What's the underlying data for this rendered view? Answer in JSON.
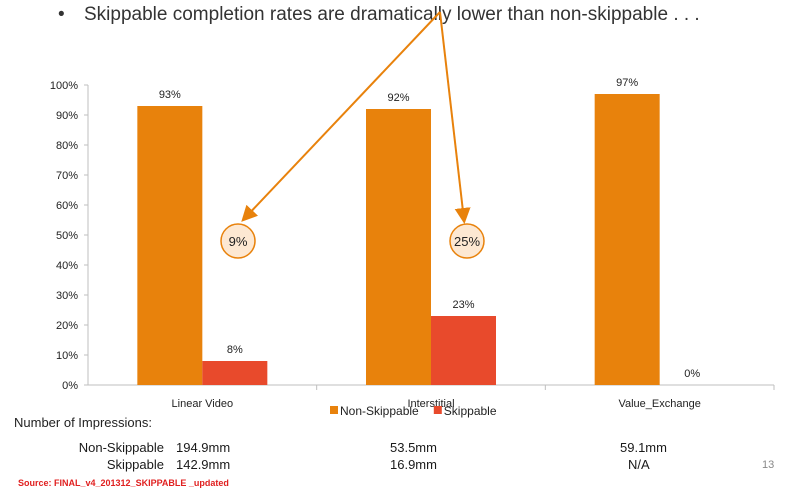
{
  "headline": {
    "bullet": "•",
    "text": "Skippable completion rates are dramatically lower than non-skippable . . ."
  },
  "chart_data": {
    "type": "bar",
    "categories": [
      "Linear Video",
      "Interstitial",
      "Value_Exchange"
    ],
    "series": [
      {
        "name": "Non-Skippable",
        "values": [
          93,
          92,
          97
        ],
        "labels": [
          "93%",
          "92%",
          "97%"
        ],
        "color": "#e8820c"
      },
      {
        "name": "Skippable",
        "values": [
          8,
          23,
          0
        ],
        "labels": [
          "8%",
          "23%",
          "0%"
        ],
        "color": "#e84a2c"
      }
    ],
    "ylim": [
      0,
      100
    ],
    "yticks": [
      "0%",
      "10%",
      "20%",
      "30%",
      "40%",
      "50%",
      "60%",
      "70%",
      "80%",
      "90%",
      "100%"
    ],
    "legend_position": "bottom",
    "annotations": [
      "9%",
      "25%"
    ]
  },
  "impressions": {
    "title": "Number of Impressions:",
    "rows": [
      {
        "label": "Non-Skippable",
        "values": [
          "194.9mm",
          "53.5mm",
          "59.1mm"
        ]
      },
      {
        "label": "Skippable",
        "values": [
          "142.9mm",
          "16.9mm",
          "N/A"
        ]
      }
    ]
  },
  "source": "Source: FINAL_v4_201312_SKIPPABLE _updated",
  "page_number": "13",
  "colors": {
    "arrow": "#e8820c",
    "annotation_fill": "#fde8d2",
    "source": "#e02020"
  }
}
